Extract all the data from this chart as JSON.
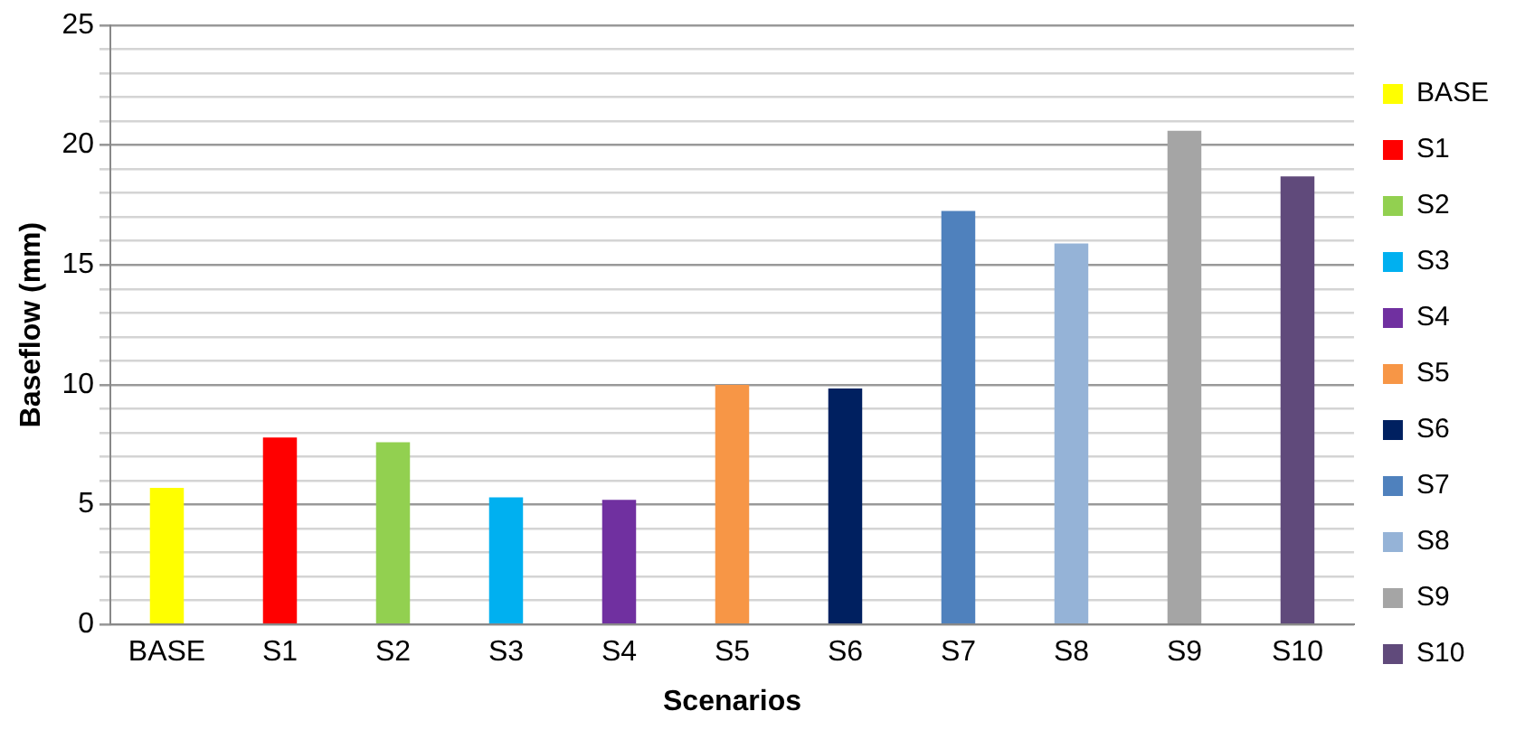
{
  "chart_data": {
    "type": "bar",
    "xlabel": "Scenarios",
    "ylabel": "Baseflow (mm)",
    "categories": [
      "BASE",
      "S1",
      "S2",
      "S3",
      "S4",
      "S5",
      "S6",
      "S7",
      "S8",
      "S9",
      "S10"
    ],
    "series": [
      {
        "name": "BASE",
        "color": "#ffff00",
        "values": [
          5.7,
          null,
          null,
          null,
          null,
          null,
          null,
          null,
          null,
          null,
          null
        ]
      },
      {
        "name": "S1",
        "color": "#ff0000",
        "values": [
          null,
          7.8,
          null,
          null,
          null,
          null,
          null,
          null,
          null,
          null,
          null
        ]
      },
      {
        "name": "S2",
        "color": "#92d050",
        "values": [
          null,
          null,
          7.6,
          null,
          null,
          null,
          null,
          null,
          null,
          null,
          null
        ]
      },
      {
        "name": "S3",
        "color": "#00b0f0",
        "values": [
          null,
          null,
          null,
          5.3,
          null,
          null,
          null,
          null,
          null,
          null,
          null
        ]
      },
      {
        "name": "S4",
        "color": "#7030a0",
        "values": [
          null,
          null,
          null,
          null,
          5.2,
          null,
          null,
          null,
          null,
          null,
          null
        ]
      },
      {
        "name": "S5",
        "color": "#f79646",
        "values": [
          null,
          null,
          null,
          null,
          null,
          10.0,
          null,
          null,
          null,
          null,
          null
        ]
      },
      {
        "name": "S6",
        "color": "#002060",
        "values": [
          null,
          null,
          null,
          null,
          null,
          null,
          9.85,
          null,
          null,
          null,
          null
        ]
      },
      {
        "name": "S7",
        "color": "#4f81bd",
        "values": [
          null,
          null,
          null,
          null,
          null,
          null,
          null,
          17.25,
          null,
          null,
          null
        ]
      },
      {
        "name": "S8",
        "color": "#95b3d7",
        "values": [
          null,
          null,
          null,
          null,
          null,
          null,
          null,
          null,
          15.9,
          null,
          null
        ]
      },
      {
        "name": "S9",
        "color": "#a5a5a5",
        "values": [
          null,
          null,
          null,
          null,
          null,
          null,
          null,
          null,
          null,
          20.6,
          null
        ]
      },
      {
        "name": "S10",
        "color": "#604a7b",
        "values": [
          null,
          null,
          null,
          null,
          null,
          null,
          null,
          null,
          null,
          null,
          18.7
        ]
      }
    ],
    "ylim": [
      0,
      25
    ],
    "yticks": [
      0,
      {
        "value": 1,
        "label": null
      },
      {
        "value": 2,
        "label": null
      },
      {
        "value": 3,
        "label": null
      },
      {
        "value": 4,
        "label": null
      },
      5,
      {
        "value": 6,
        "label": null
      },
      {
        "value": 7,
        "label": null
      },
      {
        "value": 8,
        "label": null
      },
      {
        "value": 9,
        "label": null
      },
      10,
      {
        "value": 11,
        "label": null
      },
      {
        "value": 12,
        "label": null
      },
      {
        "value": 13,
        "label": null
      },
      {
        "value": 14,
        "label": null
      },
      15,
      {
        "value": 16,
        "label": null
      },
      {
        "value": 17,
        "label": null
      },
      {
        "value": 18,
        "label": null
      },
      {
        "value": 19,
        "label": null
      },
      20,
      {
        "value": 21,
        "label": null
      },
      {
        "value": 22,
        "label": null
      },
      {
        "value": 23,
        "label": null
      },
      {
        "value": 24,
        "label": null
      },
      25
    ],
    "grid": "y",
    "legend": "right"
  }
}
